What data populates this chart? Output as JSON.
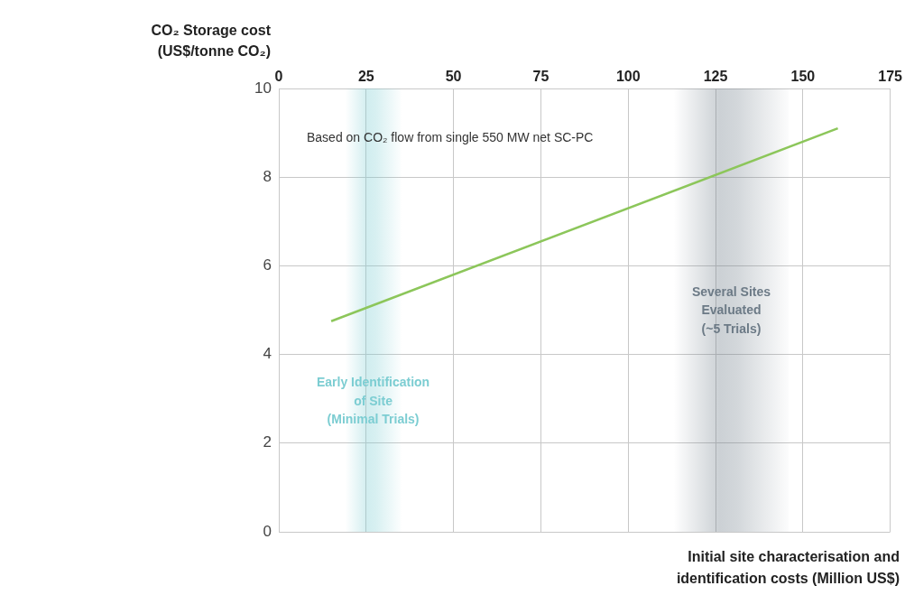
{
  "chart_data": {
    "type": "line",
    "xlabel": "Initial site characterisation and identification costs (Million US$)",
    "ylabel": "CO₂ Storage cost (US$/tonne CO₂)",
    "annotations": [
      "Based on CO₂ flow from single 550 MW net SC-PC"
    ],
    "series": [
      {
        "color": "#8cc65a",
        "x": [
          15,
          160
        ],
        "values": [
          4.75,
          9.1
        ]
      }
    ],
    "xlim": [
      0,
      175
    ],
    "xticks": [
      0,
      25,
      50,
      75,
      100,
      125,
      150,
      175
    ],
    "ylim": [
      0,
      10
    ],
    "yticks": [
      0,
      2,
      4,
      6,
      8,
      10
    ],
    "bands": [
      {
        "axis": "x",
        "from": 19,
        "to": 35,
        "label": "Early Identification\nof Site\n(Minimal Trials)",
        "color": "#7ccdd2"
      },
      {
        "axis": "x",
        "from": 113,
        "to": 146,
        "label": "Several Sites\nEvaluated\n(~5 Trials)",
        "color": "#6c7a86"
      }
    ],
    "grid": true,
    "marker": "none",
    "line_style": "solid",
    "legend": false
  }
}
